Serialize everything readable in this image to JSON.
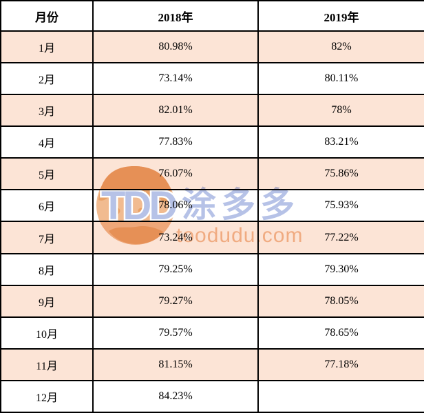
{
  "table": {
    "columns": [
      "月份",
      "2018年",
      "2019年"
    ],
    "rows": [
      [
        "1月",
        "80.98%",
        "82%"
      ],
      [
        "2月",
        "73.14%",
        "80.11%"
      ],
      [
        "3月",
        "82.01%",
        "78%"
      ],
      [
        "4月",
        "77.83%",
        "83.21%"
      ],
      [
        "5月",
        "76.07%",
        "75.86%"
      ],
      [
        "6月",
        "78.06%",
        "75.93%"
      ],
      [
        "7月",
        "73.24%",
        "77.22%"
      ],
      [
        "8月",
        "79.25%",
        "79.30%"
      ],
      [
        "9月",
        "79.27%",
        "78.05%"
      ],
      [
        "10月",
        "79.57%",
        "78.65%"
      ],
      [
        "11月",
        "81.15%",
        "77.18%"
      ],
      [
        "12月",
        "84.23%",
        ""
      ]
    ]
  },
  "watermark": {
    "logo_text": "TDD",
    "logo_cn": "涂多多",
    "site": "toodudu.com"
  },
  "colors": {
    "row_highlight": "#fce4d6",
    "border": "#000000",
    "text": "#000000",
    "watermark_blue": "#b6c2e7",
    "watermark_orange_text": "#f3c09a",
    "watermark_globe": "#f1bb90",
    "watermark_globe_dark": "#e9a166"
  },
  "chart_data": {
    "type": "table",
    "title": "",
    "columns": [
      "月份",
      "2018年",
      "2019年"
    ],
    "categories": [
      "1月",
      "2月",
      "3月",
      "4月",
      "5月",
      "6月",
      "7月",
      "8月",
      "9月",
      "10月",
      "11月",
      "12月"
    ],
    "series": [
      {
        "name": "2018年",
        "values": [
          80.98,
          73.14,
          82.01,
          77.83,
          76.07,
          78.06,
          73.24,
          79.25,
          79.27,
          79.57,
          81.15,
          84.23
        ]
      },
      {
        "name": "2019年",
        "values": [
          82,
          80.11,
          78,
          83.21,
          75.86,
          75.93,
          77.22,
          79.3,
          78.05,
          78.65,
          77.18,
          null
        ]
      }
    ],
    "unit": "%",
    "layout": {
      "highlight_rows": "odd months shaded #fce4d6",
      "grid": "black 2px solid all borders"
    }
  }
}
